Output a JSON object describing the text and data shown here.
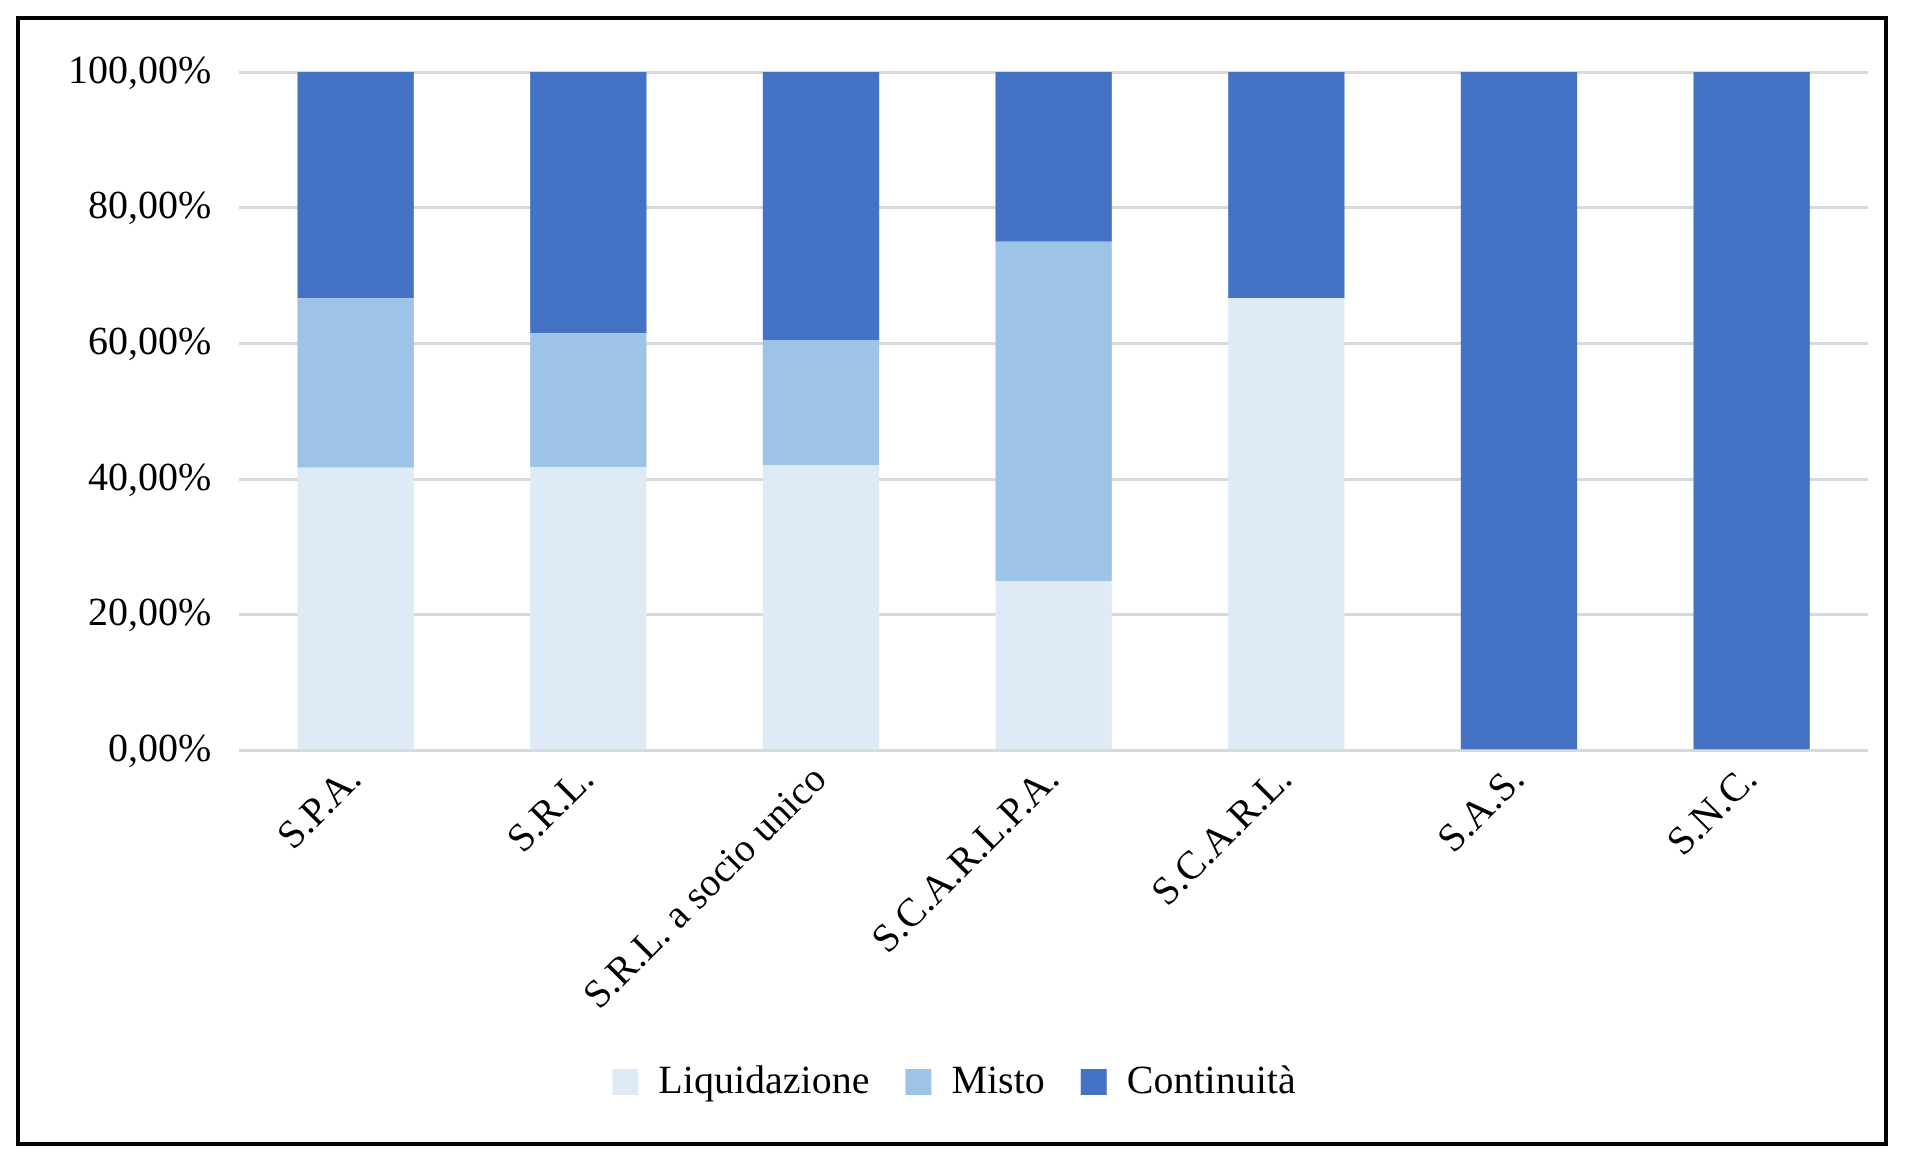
{
  "chart_data": {
    "type": "bar",
    "stacked": true,
    "categories": [
      "S.P.A.",
      "S.R.L.",
      "S.R.L. a socio unico",
      "S.C.A.R.L.P.A.",
      "S.C.A.R.L.",
      "S.A.S.",
      "S.N.C."
    ],
    "series": [
      {
        "name": "Liquidazione",
        "color": "#deebf7",
        "values": [
          41.67,
          41.8,
          42.1,
          25,
          66.67,
          0,
          0
        ]
      },
      {
        "name": "Misto",
        "color": "#9dc3e6",
        "values": [
          25,
          19.7,
          18.4,
          50,
          0,
          0,
          0
        ]
      },
      {
        "name": "Continuità",
        "color": "#4472c4",
        "values": [
          33.33,
          38.5,
          39.5,
          25,
          33.33,
          100,
          100
        ]
      }
    ],
    "ylim": [
      0,
      100
    ],
    "yticks": [
      {
        "value": 0,
        "label": "0,00%"
      },
      {
        "value": 20,
        "label": "20,00%"
      },
      {
        "value": 40,
        "label": "40,00%"
      },
      {
        "value": 60,
        "label": "60,00%"
      },
      {
        "value": 80,
        "label": "80,00%"
      },
      {
        "value": 100,
        "label": "100,00%"
      }
    ],
    "grid": "y",
    "legend": "bottom"
  }
}
